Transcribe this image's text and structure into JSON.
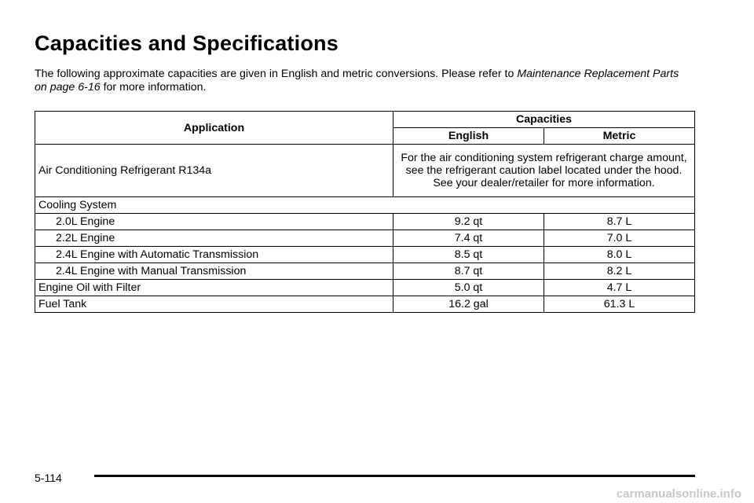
{
  "header": {
    "title": "Capacities and Specifications"
  },
  "intro": {
    "text_before": "The following approximate capacities are given in English and metric conversions. Please refer to",
    "reference": "Maintenance Replacement Parts on page 6-16",
    "text_after": "for more information."
  },
  "table": {
    "headers": {
      "application": "Application",
      "capacities": "Capacities",
      "english": "English",
      "metric": "Metric"
    },
    "rows": [
      [
        "Air Conditioning Refrigerant R134a",
        "For the air conditioning system refrigerant charge amount, see the refrigerant caution label located under the hood. See your dealer/retailer for more information."
      ],
      [
        "Cooling System"
      ],
      [
        "2.0L Engine",
        "9.2 qt",
        "8.7 L"
      ],
      [
        "2.2L Engine",
        "7.4 qt",
        "7.0 L"
      ],
      [
        "2.4L Engine with Automatic Transmission",
        "8.5 qt",
        "8.0 L"
      ],
      [
        "2.4L Engine with Manual Transmission",
        "8.7 qt",
        "8.2 L"
      ],
      [
        "Engine Oil with Filter",
        "5.0 qt",
        "4.7 L"
      ],
      [
        "Fuel Tank",
        "16.2 gal",
        "61.3 L"
      ]
    ]
  },
  "footer": {
    "page_number": "5-114",
    "watermark": "carmanualsonline.info"
  }
}
